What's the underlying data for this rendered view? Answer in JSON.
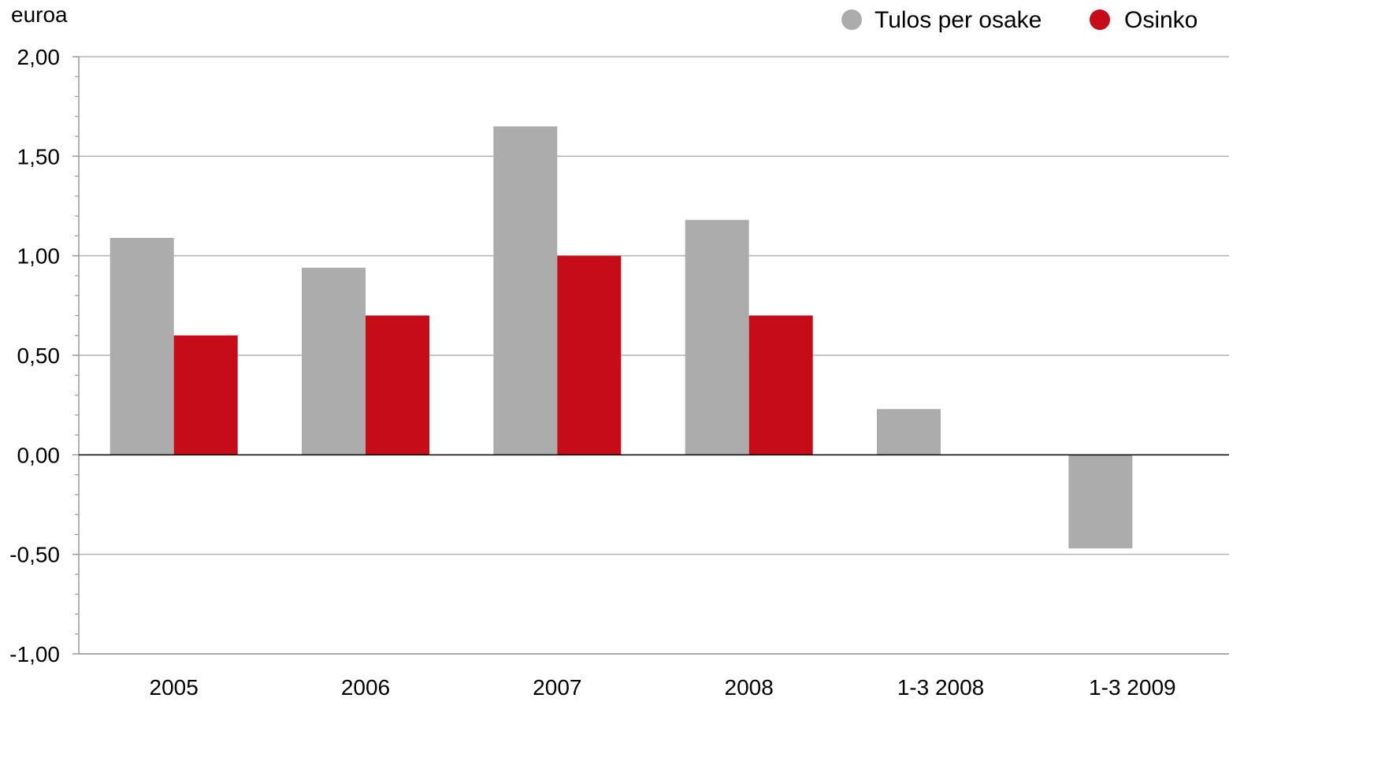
{
  "chart_data": {
    "type": "bar",
    "title": "",
    "unit_label": "euroa",
    "xlabel": "",
    "ylabel": "",
    "categories": [
      "2005",
      "2006",
      "2007",
      "2008",
      "1-3 2008",
      "1-3 2009"
    ],
    "series": [
      {
        "name": "Tulos per osake",
        "color": "#acacac",
        "values": [
          1.09,
          0.94,
          1.65,
          1.18,
          0.23,
          -0.47
        ]
      },
      {
        "name": "Osinko",
        "color": "#c60c19",
        "values": [
          0.6,
          0.7,
          1.0,
          0.7,
          null,
          null
        ]
      }
    ],
    "ylim": [
      -1.0,
      2.0
    ],
    "yticks": [
      2.0,
      1.5,
      1.0,
      0.5,
      0.0,
      -0.5,
      -1.0
    ],
    "ytick_labels": [
      "2,00",
      "1,50",
      "1,00",
      "0,50",
      "0,00",
      "-0,50",
      "-1,00"
    ],
    "grid": true,
    "legend_position": "top-right"
  }
}
